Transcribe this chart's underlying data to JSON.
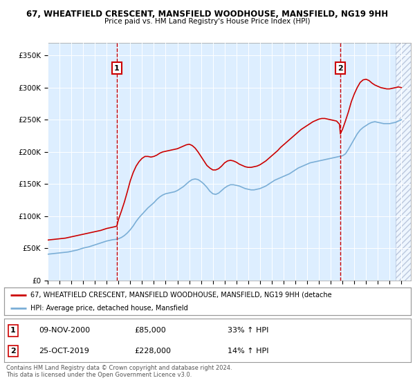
{
  "title1": "67, WHEATFIELD CRESCENT, MANSFIELD WOODHOUSE, MANSFIELD, NG19 9HH",
  "title2": "Price paid vs. HM Land Registry's House Price Index (HPI)",
  "ylabel_ticks": [
    "£0",
    "£50K",
    "£100K",
    "£150K",
    "£200K",
    "£250K",
    "£300K",
    "£350K"
  ],
  "ytick_values": [
    0,
    50000,
    100000,
    150000,
    200000,
    250000,
    300000,
    350000
  ],
  "ylim": [
    0,
    370000
  ],
  "xlim_start": 1995.0,
  "xlim_end": 2025.8,
  "xtick_years": [
    1995,
    1996,
    1997,
    1998,
    1999,
    2000,
    2001,
    2002,
    2003,
    2004,
    2005,
    2006,
    2007,
    2008,
    2009,
    2010,
    2011,
    2012,
    2013,
    2014,
    2015,
    2016,
    2017,
    2018,
    2019,
    2020,
    2021,
    2022,
    2023,
    2024,
    2025
  ],
  "vline1_x": 2000.87,
  "vline2_x": 2019.82,
  "box1_label": "1",
  "box2_label": "2",
  "legend_line1": "67, WHEATFIELD CRESCENT, MANSFIELD WOODHOUSE, MANSFIELD, NG19 9HH (detache",
  "legend_line2": "HPI: Average price, detached house, Mansfield",
  "annot1_date": "09-NOV-2000",
  "annot1_price": "£85,000",
  "annot1_hpi": "33% ↑ HPI",
  "annot2_date": "25-OCT-2019",
  "annot2_price": "£228,000",
  "annot2_hpi": "14% ↑ HPI",
  "copyright_text": "Contains HM Land Registry data © Crown copyright and database right 2024.\nThis data is licensed under the Open Government Licence v3.0.",
  "red_color": "#cc0000",
  "blue_color": "#7aaed6",
  "background_color": "#ddeeff",
  "hatch_start_year": 2024.5,
  "hpi_data": [
    [
      1995.0,
      41000
    ],
    [
      1995.25,
      41500
    ],
    [
      1995.5,
      42000
    ],
    [
      1995.75,
      42500
    ],
    [
      1996.0,
      43000
    ],
    [
      1996.25,
      43500
    ],
    [
      1996.5,
      44000
    ],
    [
      1996.75,
      44500
    ],
    [
      1997.0,
      45500
    ],
    [
      1997.25,
      46500
    ],
    [
      1997.5,
      47500
    ],
    [
      1997.75,
      49000
    ],
    [
      1998.0,
      50500
    ],
    [
      1998.25,
      51500
    ],
    [
      1998.5,
      52500
    ],
    [
      1998.75,
      54000
    ],
    [
      1999.0,
      55500
    ],
    [
      1999.25,
      57000
    ],
    [
      1999.5,
      58500
    ],
    [
      1999.75,
      60000
    ],
    [
      2000.0,
      61500
    ],
    [
      2000.25,
      62500
    ],
    [
      2000.5,
      63500
    ],
    [
      2000.75,
      64000
    ],
    [
      2001.0,
      65000
    ],
    [
      2001.25,
      67000
    ],
    [
      2001.5,
      70000
    ],
    [
      2001.75,
      74000
    ],
    [
      2002.0,
      79000
    ],
    [
      2002.25,
      85000
    ],
    [
      2002.5,
      92000
    ],
    [
      2002.75,
      98000
    ],
    [
      2003.0,
      103000
    ],
    [
      2003.25,
      108000
    ],
    [
      2003.5,
      113000
    ],
    [
      2003.75,
      117000
    ],
    [
      2004.0,
      121000
    ],
    [
      2004.25,
      126000
    ],
    [
      2004.5,
      130000
    ],
    [
      2004.75,
      133000
    ],
    [
      2005.0,
      135000
    ],
    [
      2005.25,
      136000
    ],
    [
      2005.5,
      137000
    ],
    [
      2005.75,
      138000
    ],
    [
      2006.0,
      140000
    ],
    [
      2006.25,
      143000
    ],
    [
      2006.5,
      146000
    ],
    [
      2006.75,
      150000
    ],
    [
      2007.0,
      154000
    ],
    [
      2007.25,
      157000
    ],
    [
      2007.5,
      158000
    ],
    [
      2007.75,
      157000
    ],
    [
      2008.0,
      154000
    ],
    [
      2008.25,
      150000
    ],
    [
      2008.5,
      145000
    ],
    [
      2008.75,
      139000
    ],
    [
      2009.0,
      135000
    ],
    [
      2009.25,
      134000
    ],
    [
      2009.5,
      136000
    ],
    [
      2009.75,
      140000
    ],
    [
      2010.0,
      144000
    ],
    [
      2010.25,
      147000
    ],
    [
      2010.5,
      149000
    ],
    [
      2010.75,
      149000
    ],
    [
      2011.0,
      148000
    ],
    [
      2011.25,
      147000
    ],
    [
      2011.5,
      145000
    ],
    [
      2011.75,
      143000
    ],
    [
      2012.0,
      142000
    ],
    [
      2012.25,
      141000
    ],
    [
      2012.5,
      141000
    ],
    [
      2012.75,
      142000
    ],
    [
      2013.0,
      143000
    ],
    [
      2013.25,
      145000
    ],
    [
      2013.5,
      147000
    ],
    [
      2013.75,
      150000
    ],
    [
      2014.0,
      153000
    ],
    [
      2014.25,
      156000
    ],
    [
      2014.5,
      158000
    ],
    [
      2014.75,
      160000
    ],
    [
      2015.0,
      162000
    ],
    [
      2015.25,
      164000
    ],
    [
      2015.5,
      166000
    ],
    [
      2015.75,
      169000
    ],
    [
      2016.0,
      172000
    ],
    [
      2016.25,
      175000
    ],
    [
      2016.5,
      177000
    ],
    [
      2016.75,
      179000
    ],
    [
      2017.0,
      181000
    ],
    [
      2017.25,
      183000
    ],
    [
      2017.5,
      184000
    ],
    [
      2017.75,
      185000
    ],
    [
      2018.0,
      186000
    ],
    [
      2018.25,
      187000
    ],
    [
      2018.5,
      188000
    ],
    [
      2018.75,
      189000
    ],
    [
      2019.0,
      190000
    ],
    [
      2019.25,
      191000
    ],
    [
      2019.5,
      192000
    ],
    [
      2019.75,
      193000
    ],
    [
      2020.0,
      194000
    ],
    [
      2020.25,
      197000
    ],
    [
      2020.5,
      204000
    ],
    [
      2020.75,
      212000
    ],
    [
      2021.0,
      220000
    ],
    [
      2021.25,
      228000
    ],
    [
      2021.5,
      234000
    ],
    [
      2021.75,
      238000
    ],
    [
      2022.0,
      241000
    ],
    [
      2022.25,
      244000
    ],
    [
      2022.5,
      246000
    ],
    [
      2022.75,
      247000
    ],
    [
      2023.0,
      246000
    ],
    [
      2023.25,
      245000
    ],
    [
      2023.5,
      244000
    ],
    [
      2023.75,
      244000
    ],
    [
      2024.0,
      244000
    ],
    [
      2024.25,
      245000
    ],
    [
      2024.5,
      246000
    ],
    [
      2024.75,
      248000
    ],
    [
      2025.0,
      250000
    ]
  ],
  "price_data": [
    [
      1995.0,
      63000
    ],
    [
      1995.25,
      63500
    ],
    [
      1995.5,
      64000
    ],
    [
      1995.75,
      64500
    ],
    [
      1996.0,
      65000
    ],
    [
      1996.25,
      65500
    ],
    [
      1996.5,
      66000
    ],
    [
      1996.75,
      67000
    ],
    [
      1997.0,
      68000
    ],
    [
      1997.25,
      69000
    ],
    [
      1997.5,
      70000
    ],
    [
      1997.75,
      71000
    ],
    [
      1998.0,
      72000
    ],
    [
      1998.25,
      73000
    ],
    [
      1998.5,
      74000
    ],
    [
      1998.75,
      75000
    ],
    [
      1999.0,
      76000
    ],
    [
      1999.25,
      77000
    ],
    [
      1999.5,
      78000
    ],
    [
      1999.75,
      79500
    ],
    [
      2000.0,
      81000
    ],
    [
      2000.25,
      82000
    ],
    [
      2000.5,
      83000
    ],
    [
      2000.75,
      84000
    ],
    [
      2000.87,
      85000
    ],
    [
      2001.0,
      95000
    ],
    [
      2001.25,
      108000
    ],
    [
      2001.5,
      122000
    ],
    [
      2001.75,
      138000
    ],
    [
      2002.0,
      155000
    ],
    [
      2002.25,
      168000
    ],
    [
      2002.5,
      178000
    ],
    [
      2002.75,
      185000
    ],
    [
      2003.0,
      190000
    ],
    [
      2003.25,
      193000
    ],
    [
      2003.5,
      193000
    ],
    [
      2003.75,
      192000
    ],
    [
      2004.0,
      193000
    ],
    [
      2004.25,
      195000
    ],
    [
      2004.5,
      198000
    ],
    [
      2004.75,
      200000
    ],
    [
      2005.0,
      201000
    ],
    [
      2005.25,
      202000
    ],
    [
      2005.5,
      203000
    ],
    [
      2005.75,
      204000
    ],
    [
      2006.0,
      205000
    ],
    [
      2006.25,
      207000
    ],
    [
      2006.5,
      209000
    ],
    [
      2006.75,
      211000
    ],
    [
      2007.0,
      212000
    ],
    [
      2007.25,
      210000
    ],
    [
      2007.5,
      206000
    ],
    [
      2007.75,
      200000
    ],
    [
      2008.0,
      193000
    ],
    [
      2008.25,
      186000
    ],
    [
      2008.5,
      179000
    ],
    [
      2008.75,
      175000
    ],
    [
      2009.0,
      172000
    ],
    [
      2009.25,
      172000
    ],
    [
      2009.5,
      174000
    ],
    [
      2009.75,
      178000
    ],
    [
      2010.0,
      183000
    ],
    [
      2010.25,
      186000
    ],
    [
      2010.5,
      187000
    ],
    [
      2010.75,
      186000
    ],
    [
      2011.0,
      184000
    ],
    [
      2011.25,
      181000
    ],
    [
      2011.5,
      179000
    ],
    [
      2011.75,
      177000
    ],
    [
      2012.0,
      176000
    ],
    [
      2012.25,
      176000
    ],
    [
      2012.5,
      177000
    ],
    [
      2012.75,
      178000
    ],
    [
      2013.0,
      180000
    ],
    [
      2013.25,
      183000
    ],
    [
      2013.5,
      186000
    ],
    [
      2013.75,
      190000
    ],
    [
      2014.0,
      194000
    ],
    [
      2014.25,
      198000
    ],
    [
      2014.5,
      202000
    ],
    [
      2014.75,
      207000
    ],
    [
      2015.0,
      211000
    ],
    [
      2015.25,
      215000
    ],
    [
      2015.5,
      219000
    ],
    [
      2015.75,
      223000
    ],
    [
      2016.0,
      227000
    ],
    [
      2016.25,
      231000
    ],
    [
      2016.5,
      235000
    ],
    [
      2016.75,
      238000
    ],
    [
      2017.0,
      241000
    ],
    [
      2017.25,
      244000
    ],
    [
      2017.5,
      247000
    ],
    [
      2017.75,
      249000
    ],
    [
      2018.0,
      251000
    ],
    [
      2018.25,
      252000
    ],
    [
      2018.5,
      252000
    ],
    [
      2018.75,
      251000
    ],
    [
      2019.0,
      250000
    ],
    [
      2019.25,
      249000
    ],
    [
      2019.5,
      248000
    ],
    [
      2019.75,
      243000
    ],
    [
      2019.82,
      228000
    ],
    [
      2020.0,
      235000
    ],
    [
      2020.25,
      248000
    ],
    [
      2020.5,
      262000
    ],
    [
      2020.75,
      278000
    ],
    [
      2021.0,
      290000
    ],
    [
      2021.25,
      300000
    ],
    [
      2021.5,
      308000
    ],
    [
      2021.75,
      312000
    ],
    [
      2022.0,
      313000
    ],
    [
      2022.25,
      311000
    ],
    [
      2022.5,
      307000
    ],
    [
      2022.75,
      304000
    ],
    [
      2023.0,
      302000
    ],
    [
      2023.25,
      300000
    ],
    [
      2023.5,
      299000
    ],
    [
      2023.75,
      298000
    ],
    [
      2024.0,
      298000
    ],
    [
      2024.25,
      299000
    ],
    [
      2024.5,
      300000
    ],
    [
      2024.75,
      301000
    ],
    [
      2025.0,
      300000
    ]
  ]
}
